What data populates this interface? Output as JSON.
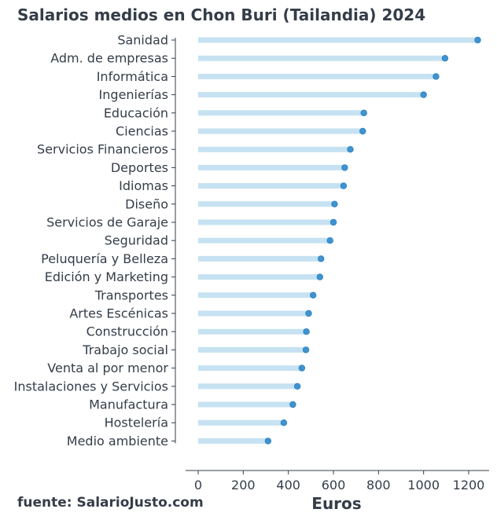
{
  "chart_data": {
    "type": "bar",
    "subtype": "lollipop-horizontal",
    "title": "Salarios medios en Chon Buri (Tailandia) 2024",
    "xlabel": "Euros",
    "ylabel": "",
    "xlim": [
      0,
      1300
    ],
    "x_ticks": [
      "0",
      "200",
      "400",
      "600",
      "800",
      "1000",
      "1200"
    ],
    "grid": false,
    "categories": [
      "Sanidad",
      "Adm. de empresas",
      "Informática",
      "Ingenierías",
      "Educación",
      "Ciencias",
      "Servicios Financieros",
      "Deportes",
      "Idiomas",
      "Diseño",
      "Servicios de Garaje",
      "Seguridad",
      "Peluquería y Belleza",
      "Edición y Marketing",
      "Transportes",
      "Artes Escénicas",
      "Construcción",
      "Trabajo social",
      "Venta al por menor",
      "Instalaciones y Servicios",
      "Manufactura",
      "Hostelería",
      "Medio ambiente"
    ],
    "values": [
      1240,
      1095,
      1055,
      1000,
      735,
      730,
      675,
      650,
      645,
      605,
      600,
      585,
      545,
      540,
      510,
      490,
      480,
      478,
      460,
      440,
      420,
      380,
      310
    ]
  },
  "footer": {
    "source": "fuente: SalarioJusto.com"
  },
  "colors": {
    "bar": "#c6e2f2",
    "point": "#3f93cf",
    "text": "#343d48",
    "axis": "#343d48"
  }
}
